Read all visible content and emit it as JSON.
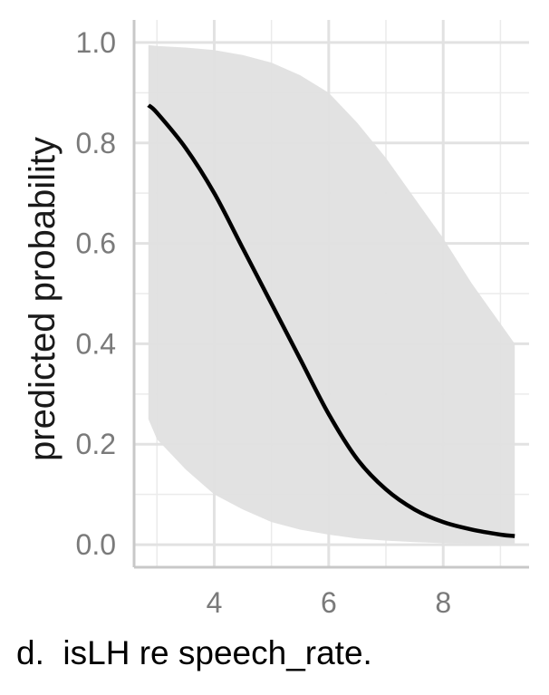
{
  "caption": "d.  isLH re speech_rate.",
  "chart_data": {
    "type": "line",
    "title": "",
    "xlabel": "",
    "ylabel": "predicted probability",
    "xlim": [
      2.6,
      9.5
    ],
    "ylim": [
      -0.045,
      1.045
    ],
    "x_ticks": [
      4,
      6,
      8
    ],
    "x_tick_labels": [
      "4",
      "6",
      "8"
    ],
    "y_ticks": [
      0.0,
      0.2,
      0.4,
      0.6,
      0.8,
      1.0
    ],
    "y_tick_labels": [
      "0.0",
      "0.2",
      "0.4",
      "0.6",
      "0.8",
      "1.0"
    ],
    "grid": true,
    "series": [
      {
        "color": "#000000",
        "x": [
          2.85,
          3.0,
          3.5,
          4.0,
          4.5,
          5.0,
          5.5,
          6.0,
          6.5,
          7.0,
          7.5,
          8.0,
          8.5,
          9.0,
          9.25
        ],
        "y": [
          0.875,
          0.86,
          0.79,
          0.7,
          0.59,
          0.48,
          0.37,
          0.26,
          0.17,
          0.11,
          0.07,
          0.045,
          0.03,
          0.02,
          0.017
        ]
      }
    ],
    "confidence_band": {
      "color": "#e0e0e0",
      "x": [
        2.85,
        3.0,
        3.5,
        4.0,
        4.5,
        5.0,
        5.5,
        6.0,
        6.5,
        7.0,
        7.5,
        8.0,
        8.5,
        9.0,
        9.25
      ],
      "lower": [
        0.25,
        0.21,
        0.15,
        0.1,
        0.07,
        0.045,
        0.03,
        0.02,
        0.012,
        0.008,
        0.005,
        0.003,
        0.002,
        0.001,
        0.001
      ],
      "upper": [
        0.995,
        0.993,
        0.99,
        0.985,
        0.975,
        0.96,
        0.935,
        0.9,
        0.84,
        0.77,
        0.69,
        0.61,
        0.52,
        0.44,
        0.4
      ]
    }
  }
}
